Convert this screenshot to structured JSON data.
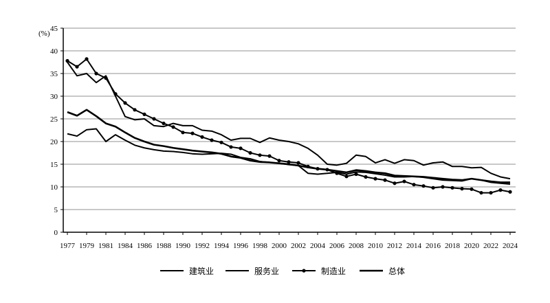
{
  "chart_data": {
    "type": "line",
    "unit_label": "(%)",
    "ylim": [
      0,
      45
    ],
    "yticks": [
      0,
      5,
      10,
      15,
      20,
      25,
      30,
      35,
      40,
      45
    ],
    "grid": "horizontal",
    "legend_placement": "bottom",
    "x": [
      1977,
      1978,
      1979,
      1980,
      1981,
      1983,
      1984,
      1985,
      1986,
      1987,
      1988,
      1989,
      1990,
      1991,
      1992,
      1993,
      1994,
      1995,
      1996,
      1997,
      1998,
      1999,
      2000,
      2001,
      2002,
      2003,
      2004,
      2005,
      2006,
      2007,
      2008,
      2009,
      2010,
      2011,
      2012,
      2013,
      2014,
      2015,
      2016,
      2017,
      2018,
      2019,
      2020,
      2021,
      2022,
      2023,
      2024
    ],
    "xtick_labels": [
      "1977",
      "1979",
      "1981",
      "1984",
      "1986",
      "1988",
      "1990",
      "1992",
      "1994",
      "1996",
      "1998",
      "2000",
      "2002",
      "2004",
      "2006",
      "2008",
      "2010",
      "2012",
      "2014",
      "2016",
      "2018",
      "2020",
      "2022",
      "2024"
    ],
    "series": [
      {
        "name": "建筑业",
        "color": "#000000",
        "marker": "none",
        "values": [
          37.5,
          34.5,
          35,
          33,
          34.5,
          30,
          25.5,
          24.8,
          25,
          23.5,
          23.3,
          24,
          23.5,
          23.5,
          22.5,
          22.3,
          21.5,
          20.3,
          20.7,
          20.7,
          19.8,
          20.8,
          20.3,
          20,
          19.5,
          18.5,
          17,
          15,
          14.8,
          15.2,
          17,
          16.7,
          15.3,
          16,
          15.2,
          16,
          15.8,
          14.8,
          15.3,
          15.5,
          14.5,
          14.5,
          14.2,
          14.3,
          13,
          12.2,
          11.8
        ]
      },
      {
        "name": "服务业",
        "color": "#000000",
        "marker": "none",
        "values": [
          21.7,
          21.2,
          22.6,
          22.8,
          20,
          21.5,
          20.3,
          19.2,
          18.6,
          18.2,
          17.9,
          17.8,
          17.6,
          17.3,
          17.2,
          17.3,
          17.4,
          17.2,
          16.5,
          16.2,
          15.6,
          15.4,
          15.2,
          14.9,
          14.7,
          13,
          12.8,
          13,
          13.2,
          12.8,
          13.3,
          13.2,
          12.9,
          12.6,
          12.2,
          12.2,
          12.3,
          12.1,
          11.8,
          11.5,
          11.4,
          11.3,
          11.8,
          11.5,
          11,
          10.8,
          10.6
        ]
      },
      {
        "name": "制造业",
        "color": "#000000",
        "marker": "circle",
        "values": [
          37.8,
          36.5,
          38.2,
          35,
          34,
          30.5,
          28.5,
          27,
          26,
          25,
          24,
          23.2,
          22,
          21.8,
          21,
          20.3,
          19.8,
          18.8,
          18.5,
          17.5,
          17,
          16.8,
          15.8,
          15.5,
          15.3,
          14.5,
          14,
          13.8,
          13,
          12.3,
          12.8,
          12.2,
          11.8,
          11.5,
          10.8,
          11.2,
          10.5,
          10.2,
          9.8,
          10,
          9.8,
          9.6,
          9.5,
          8.7,
          8.7,
          9.3,
          8.9
        ]
      },
      {
        "name": "总体",
        "color": "#000000",
        "marker": "none",
        "values": [
          26.5,
          25.7,
          27,
          25.6,
          24,
          23.3,
          22,
          20.8,
          20,
          19.3,
          19,
          18.6,
          18.3,
          18,
          17.8,
          17.6,
          17.3,
          16.7,
          16.4,
          15.8,
          15.5,
          15.4,
          15.2,
          15,
          14.7,
          14.3,
          14,
          13.8,
          13.5,
          13.2,
          13.7,
          13.5,
          13.2,
          13,
          12.5,
          12.4,
          12.3,
          12.2,
          12,
          11.8,
          11.6,
          11.5,
          11.8,
          11.5,
          11.2,
          11,
          11
        ]
      }
    ]
  }
}
